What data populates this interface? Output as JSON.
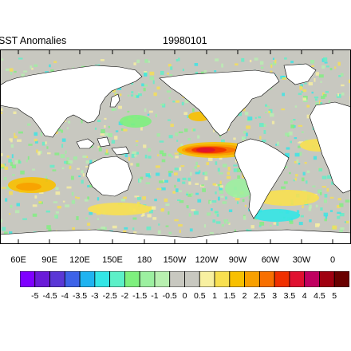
{
  "header": {
    "title_left": "SST Anomalies",
    "title_center": "19980101"
  },
  "map": {
    "land_color": "#ffffff",
    "missing_color": "#c8c8c0",
    "lon_labels": [
      "60E",
      "90E",
      "120E",
      "150E",
      "180",
      "150W",
      "120W",
      "90W",
      "60W",
      "30W",
      "0"
    ]
  },
  "colorbar": {
    "labels": [
      "-5",
      "-4.5",
      "-4",
      "-3.5",
      "-3",
      "-2.5",
      "-2",
      "-1.5",
      "-1",
      "-0.5",
      "0",
      "0.5",
      "1",
      "1.5",
      "2",
      "2.5",
      "3",
      "3.5",
      "4",
      "4.5",
      "5"
    ],
    "colors": [
      "#7f00ff",
      "#6a1bd8",
      "#5a37d6",
      "#3d63e8",
      "#1fb3f0",
      "#33e6e6",
      "#5cf0c8",
      "#7ef07e",
      "#9cf0a0",
      "#b8f0b0",
      "#c8c8c0",
      "#c8c8c0",
      "#f8f0a0",
      "#f8e050",
      "#f8c000",
      "#f8a000",
      "#f87000",
      "#f03000",
      "#e01030",
      "#c00060",
      "#a00010",
      "#6a0000"
    ]
  }
}
